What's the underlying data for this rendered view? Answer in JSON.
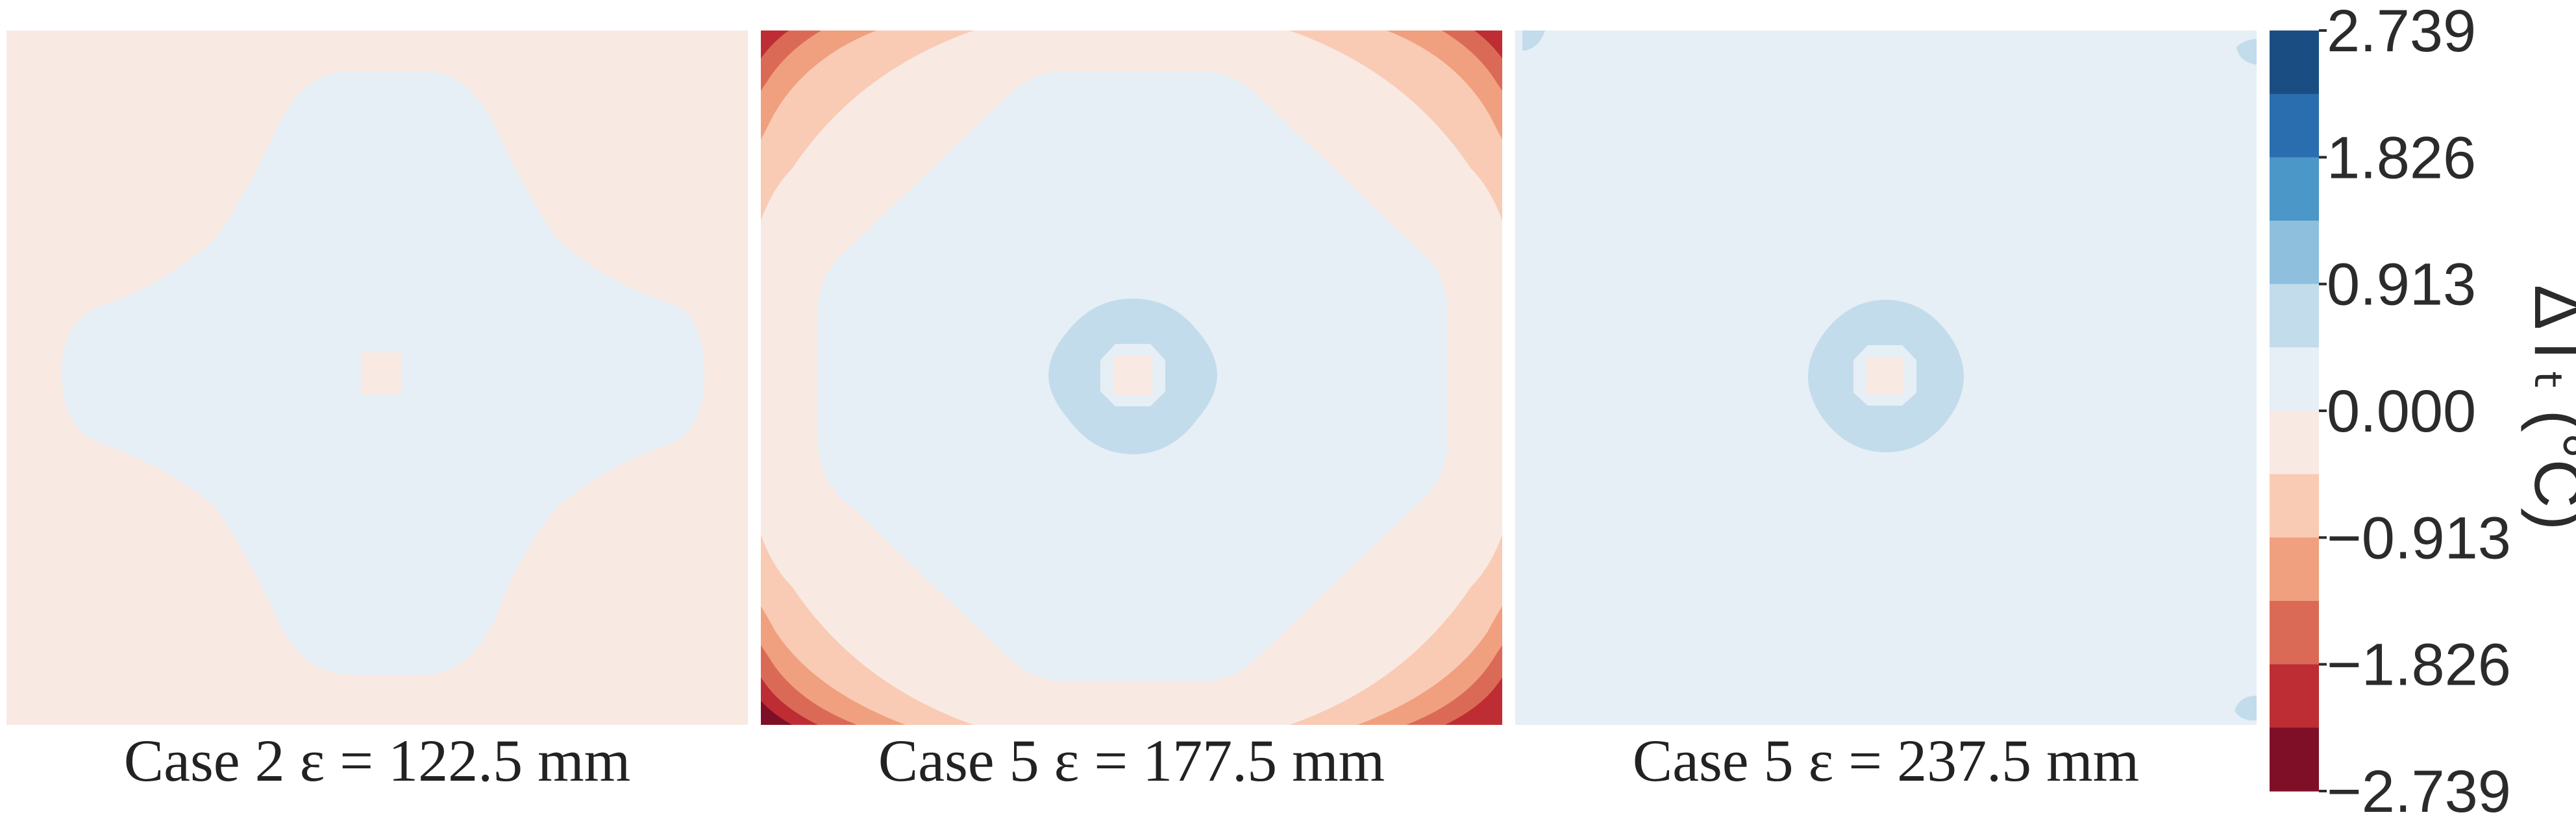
{
  "chart_data": {
    "type": "heatmap",
    "panels": [
      {
        "caption": "Case 2 ε = 122.5 mm",
        "case": "Case 2",
        "epsilon_mm": 122.5
      },
      {
        "caption": "Case 5 ε = 177.5 mm",
        "case": "Case 5",
        "epsilon_mm": 177.5
      },
      {
        "caption": "Case 5 ε = 237.5 mm",
        "case": "Case 5",
        "epsilon_mm": 237.5
      }
    ],
    "colorbar": {
      "label": "ΔTₜ (°C)",
      "range": [
        -2.739,
        2.739
      ],
      "ticks": [
        2.739,
        1.826,
        0.913,
        0.0,
        -0.913,
        -1.826,
        -2.739
      ],
      "tick_labels": [
        "2.739",
        "1.826",
        "0.913",
        "0.000",
        "−0.913",
        "−1.826",
        "−2.739"
      ],
      "levels_top_to_bottom": [
        "#1a4d82",
        "#2a6eaf",
        "#4b97c8",
        "#8ec0de",
        "#c3dcec",
        "#e6eff5",
        "#f9e9e3",
        "#f9cbb4",
        "#f0a07f",
        "#da6a56",
        "#bd2d33",
        "#7f0f27"
      ]
    }
  },
  "colors": {
    "neutral_warm": "#f9e9e3",
    "neutral_cool": "#e6eff5",
    "light_blue": "#c3dcec",
    "light_red": "#f9cbb4",
    "mid_red": "#f0a07f",
    "red": "#da6a56",
    "deep_red": "#bd2d33",
    "darkest_red": "#7f0f27"
  }
}
